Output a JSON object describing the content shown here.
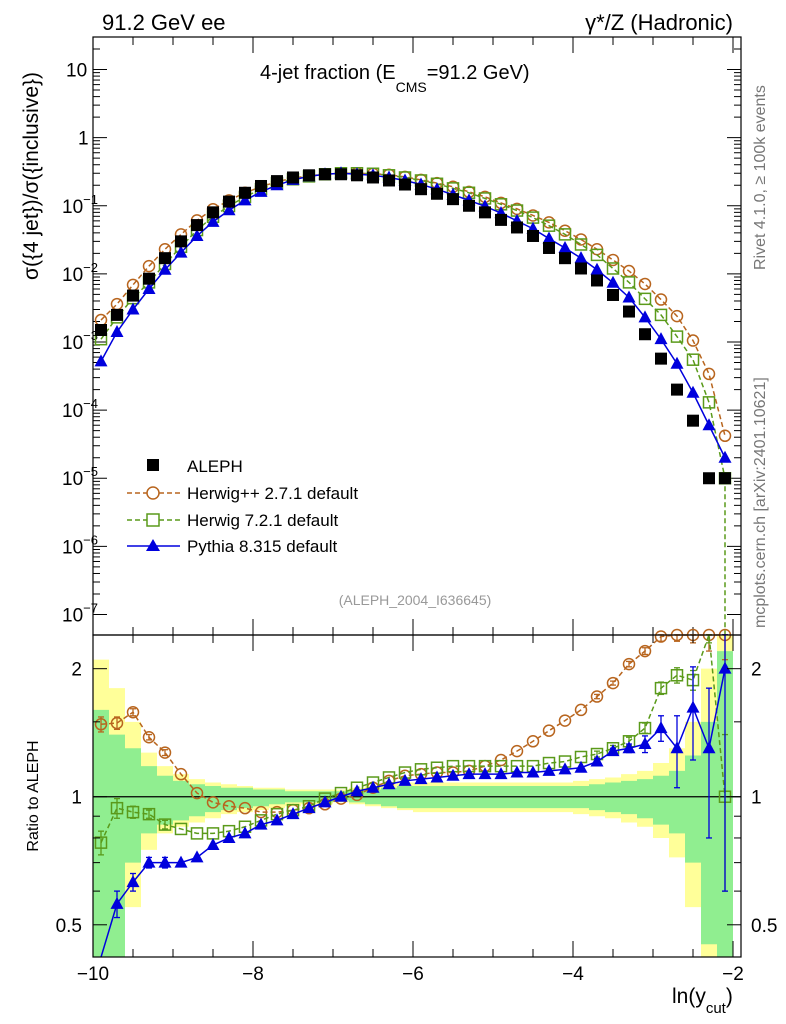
{
  "header": {
    "left": "91.2 GeV ee",
    "right": "γ*/Z (Hadronic)"
  },
  "side_labels": {
    "rivet": "Rivet 4.1.0, ≥ 100k events",
    "mcplots": "mcplots.cern.ch [arXiv:2401.10621]"
  },
  "colors": {
    "data": "#000000",
    "herwigpp": "#b8651e",
    "herwig7": "#5a9a1a",
    "pythia": "#0000dd",
    "band_inner": "#90ee90",
    "band_outer": "#ffff99"
  },
  "chart_data": [
    {
      "type": "scatter",
      "scale": "log",
      "title_main": "4-jet fraction (E",
      "title_sub": "CMS",
      "title_tail": "=91.2 GeV)",
      "ylabel": "σ({4 jet})/σ({inclusive})",
      "analysis_tag": "(ALEPH_2004_I636645)",
      "xlim": [
        -10.0,
        -1.9
      ],
      "ylim": [
        5e-08,
        30
      ],
      "y_ticks": [
        {
          "v": 1e-07,
          "base": "10",
          "exp": "−7"
        },
        {
          "v": 1e-06,
          "base": "10",
          "exp": "−6"
        },
        {
          "v": 1e-05,
          "base": "10",
          "exp": "−5"
        },
        {
          "v": 0.0001,
          "base": "10",
          "exp": "−4"
        },
        {
          "v": 0.001,
          "base": "10",
          "exp": "−3"
        },
        {
          "v": 0.01,
          "base": "10",
          "exp": "−2"
        },
        {
          "v": 0.1,
          "base": "10",
          "exp": "−1"
        },
        {
          "v": 1,
          "base": "1",
          "exp": ""
        },
        {
          "v": 10,
          "base": "10",
          "exp": ""
        }
      ],
      "x": [
        -9.9,
        -9.7,
        -9.5,
        -9.3,
        -9.1,
        -8.9,
        -8.7,
        -8.5,
        -8.3,
        -8.1,
        -7.9,
        -7.7,
        -7.5,
        -7.3,
        -7.1,
        -6.9,
        -6.7,
        -6.5,
        -6.3,
        -6.1,
        -5.9,
        -5.7,
        -5.5,
        -5.3,
        -5.1,
        -4.9,
        -4.7,
        -4.5,
        -4.3,
        -4.1,
        -3.9,
        -3.7,
        -3.5,
        -3.3,
        -3.1,
        -2.9,
        -2.7,
        -2.5,
        -2.3,
        -2.1
      ],
      "series": [
        {
          "name": "ALEPH",
          "key": "aleph",
          "marker": "filled-square",
          "values": [
            0.0015,
            0.0025,
            0.0048,
            0.0085,
            0.017,
            0.03,
            0.052,
            0.08,
            0.115,
            0.155,
            0.195,
            0.23,
            0.26,
            0.28,
            0.29,
            0.29,
            0.28,
            0.26,
            0.235,
            0.205,
            0.175,
            0.15,
            0.125,
            0.1,
            0.08,
            0.062,
            0.048,
            0.036,
            0.024,
            0.017,
            0.012,
            0.008,
            0.0049,
            0.0028,
            0.0013,
            0.00057,
            0.0002,
            7e-05,
            1e-05,
            1e-05
          ]
        },
        {
          "name": "Herwig++ 2.7.1 default",
          "key": "herwigpp",
          "marker": "open-circle",
          "values": [
            0.0021,
            0.0036,
            0.0069,
            0.013,
            0.023,
            0.038,
            0.061,
            0.089,
            0.12,
            0.155,
            0.19,
            0.225,
            0.255,
            0.275,
            0.29,
            0.3,
            0.3,
            0.295,
            0.285,
            0.265,
            0.24,
            0.215,
            0.19,
            0.16,
            0.135,
            0.11,
            0.09,
            0.072,
            0.057,
            0.043,
            0.032,
            0.023,
            0.016,
            0.011,
            0.0071,
            0.0042,
            0.0024,
            0.00105,
            0.00034,
            4.2e-05
          ]
        },
        {
          "name": "Herwig 7.2.1 default",
          "key": "herwig7",
          "marker": "open-square",
          "values": [
            0.0011,
            0.0023,
            0.0044,
            0.0075,
            0.014,
            0.025,
            0.044,
            0.069,
            0.099,
            0.135,
            0.175,
            0.215,
            0.245,
            0.27,
            0.29,
            0.3,
            0.3,
            0.295,
            0.28,
            0.26,
            0.235,
            0.21,
            0.18,
            0.155,
            0.128,
            0.105,
            0.085,
            0.067,
            0.051,
            0.038,
            0.027,
            0.019,
            0.012,
            0.0075,
            0.0043,
            0.0025,
            0.0012,
            0.00055,
            0.00013,
            1e-05
          ]
        },
        {
          "name": "Pythia 8.315 default",
          "key": "pythia",
          "marker": "filled-triangle",
          "values": [
            0.00052,
            0.0014,
            0.003,
            0.006,
            0.0115,
            0.0205,
            0.036,
            0.058,
            0.086,
            0.12,
            0.16,
            0.2,
            0.24,
            0.27,
            0.29,
            0.3,
            0.29,
            0.28,
            0.26,
            0.235,
            0.205,
            0.175,
            0.145,
            0.12,
            0.098,
            0.078,
            0.06,
            0.046,
            0.033,
            0.024,
            0.017,
            0.0115,
            0.0074,
            0.0045,
            0.0023,
            0.0011,
            0.00048,
            0.00018,
            6e-05,
            2e-05
          ]
        }
      ],
      "legend": {
        "placement": "lower-left",
        "entries": [
          "ALEPH",
          "Herwig++ 2.7.1 default",
          "Herwig 7.2.1 default",
          "Pythia 8.315 default"
        ]
      }
    },
    {
      "type": "scatter",
      "scale": "log",
      "ylabel": "Ratio to ALEPH",
      "xlabel_main": "ln(y",
      "xlabel_sub": "cut",
      "xlabel_tail": ")",
      "xlim": [
        -10.0,
        -1.9
      ],
      "ylim": [
        0.42,
        2.4
      ],
      "y_ticks": [
        {
          "v": 0.5,
          "label": "0.5"
        },
        {
          "v": 1,
          "label": "1"
        },
        {
          "v": 2,
          "label": "2"
        }
      ],
      "x_ticks": [
        {
          "v": -10,
          "label": "−10"
        },
        {
          "v": -8,
          "label": "−8"
        },
        {
          "v": -6,
          "label": "−6"
        },
        {
          "v": -4,
          "label": "−4"
        },
        {
          "v": -2,
          "label": "−2"
        }
      ],
      "bins": [
        -10.0,
        -9.8,
        -9.6,
        -9.4,
        -9.2,
        -9.0,
        -8.8,
        -8.6,
        -8.4,
        -8.2,
        -8.0,
        -7.8,
        -7.6,
        -7.4,
        -7.2,
        -7.0,
        -6.8,
        -6.6,
        -6.4,
        -6.2,
        -6.0,
        -5.8,
        -5.6,
        -5.4,
        -5.2,
        -5.0,
        -4.8,
        -4.6,
        -4.4,
        -4.2,
        -4.0,
        -3.8,
        -3.6,
        -3.4,
        -3.2,
        -3.0,
        -2.8,
        -2.6,
        -2.4,
        -2.2,
        -2.0
      ],
      "band_inner": {
        "lo": [
          0.3,
          0.42,
          0.7,
          0.82,
          0.86,
          0.88,
          0.9,
          0.92,
          0.93,
          0.94,
          0.95,
          0.96,
          0.97,
          0.97,
          0.97,
          0.98,
          0.97,
          0.96,
          0.95,
          0.94,
          0.94,
          0.94,
          0.94,
          0.94,
          0.94,
          0.94,
          0.94,
          0.94,
          0.94,
          0.94,
          0.94,
          0.93,
          0.92,
          0.91,
          0.89,
          0.86,
          0.82,
          0.7,
          0.45,
          0.3
        ],
        "hi": [
          1.6,
          1.4,
          1.3,
          1.18,
          1.12,
          1.09,
          1.07,
          1.06,
          1.05,
          1.05,
          1.04,
          1.04,
          1.03,
          1.03,
          1.03,
          1.03,
          1.03,
          1.04,
          1.05,
          1.06,
          1.06,
          1.06,
          1.06,
          1.06,
          1.06,
          1.06,
          1.06,
          1.06,
          1.06,
          1.06,
          1.06,
          1.07,
          1.08,
          1.09,
          1.1,
          1.12,
          1.15,
          1.25,
          1.5,
          2.2
        ]
      },
      "band_outer": {
        "lo": [
          0.2,
          0.3,
          0.55,
          0.75,
          0.82,
          0.85,
          0.87,
          0.89,
          0.91,
          0.92,
          0.93,
          0.94,
          0.95,
          0.96,
          0.96,
          0.97,
          0.96,
          0.95,
          0.94,
          0.93,
          0.92,
          0.92,
          0.92,
          0.92,
          0.92,
          0.92,
          0.92,
          0.92,
          0.92,
          0.92,
          0.91,
          0.9,
          0.89,
          0.87,
          0.85,
          0.8,
          0.72,
          0.55,
          0.3,
          0.2
        ],
        "hi": [
          2.1,
          1.8,
          1.5,
          1.27,
          1.18,
          1.13,
          1.1,
          1.08,
          1.07,
          1.06,
          1.05,
          1.05,
          1.04,
          1.04,
          1.04,
          1.04,
          1.05,
          1.06,
          1.07,
          1.08,
          1.08,
          1.08,
          1.08,
          1.08,
          1.08,
          1.08,
          1.08,
          1.08,
          1.08,
          1.08,
          1.09,
          1.1,
          1.11,
          1.13,
          1.15,
          1.2,
          1.3,
          1.5,
          2.0,
          2.4
        ]
      },
      "ratios": [
        {
          "key": "herwigpp",
          "values": [
            1.48,
            1.49,
            1.58,
            1.38,
            1.27,
            1.13,
            1.02,
            0.97,
            0.95,
            0.94,
            0.92,
            0.92,
            0.93,
            0.94,
            0.96,
            0.99,
            1.01,
            1.05,
            1.09,
            1.12,
            1.13,
            1.14,
            1.14,
            1.15,
            1.18,
            1.22,
            1.28,
            1.35,
            1.43,
            1.51,
            1.6,
            1.72,
            1.85,
            2.05,
            2.2,
            2.38,
            2.4,
            2.4,
            2.4,
            2.4
          ],
          "err": [
            0.06,
            0.05,
            0.03,
            0.02,
            0.02,
            0.01,
            0.01,
            0.01,
            0.01,
            0.01,
            0.01,
            0.01,
            0.01,
            0.01,
            0.01,
            0.01,
            0.01,
            0.01,
            0.01,
            0.01,
            0.01,
            0.01,
            0.01,
            0.01,
            0.01,
            0.01,
            0.01,
            0.01,
            0.01,
            0.01,
            0.01,
            0.02,
            0.02,
            0.03,
            0.04,
            0.06,
            0.08,
            0.1,
            0.2,
            0.3
          ]
        },
        {
          "key": "herwig7",
          "values": [
            0.78,
            0.94,
            0.92,
            0.91,
            0.86,
            0.84,
            0.82,
            0.82,
            0.83,
            0.85,
            0.88,
            0.91,
            0.93,
            0.95,
            0.99,
            1.02,
            1.05,
            1.08,
            1.11,
            1.14,
            1.16,
            1.17,
            1.18,
            1.18,
            1.18,
            1.18,
            1.18,
            1.18,
            1.2,
            1.21,
            1.24,
            1.26,
            1.3,
            1.35,
            1.45,
            1.8,
            1.93,
            1.88,
            2.5,
            1.0
          ],
          "err": [
            0.05,
            0.05,
            0.03,
            0.02,
            0.02,
            0.01,
            0.01,
            0.01,
            0.01,
            0.01,
            0.01,
            0.01,
            0.01,
            0.01,
            0.01,
            0.01,
            0.01,
            0.01,
            0.01,
            0.01,
            0.01,
            0.01,
            0.01,
            0.01,
            0.01,
            0.01,
            0.01,
            0.01,
            0.01,
            0.01,
            0.01,
            0.02,
            0.02,
            0.03,
            0.04,
            0.06,
            0.08,
            0.1,
            0.2,
            0.4
          ]
        },
        {
          "key": "pythia",
          "values": [
            0.35,
            0.56,
            0.63,
            0.7,
            0.7,
            0.7,
            0.72,
            0.77,
            0.8,
            0.82,
            0.86,
            0.88,
            0.91,
            0.94,
            0.97,
            1.0,
            1.03,
            1.05,
            1.07,
            1.09,
            1.1,
            1.11,
            1.12,
            1.13,
            1.13,
            1.13,
            1.14,
            1.14,
            1.15,
            1.16,
            1.17,
            1.21,
            1.28,
            1.3,
            1.33,
            1.45,
            1.3,
            1.62,
            1.3,
            2.0
          ],
          "err": [
            0.05,
            0.04,
            0.03,
            0.02,
            0.02,
            0.01,
            0.01,
            0.01,
            0.01,
            0.01,
            0.01,
            0.01,
            0.01,
            0.01,
            0.01,
            0.01,
            0.01,
            0.01,
            0.01,
            0.01,
            0.01,
            0.01,
            0.01,
            0.01,
            0.01,
            0.01,
            0.01,
            0.01,
            0.01,
            0.01,
            0.01,
            0.02,
            0.02,
            0.03,
            0.06,
            0.1,
            0.25,
            0.4,
            0.5,
            1.4
          ]
        }
      ],
      "reference_line": 1
    }
  ]
}
